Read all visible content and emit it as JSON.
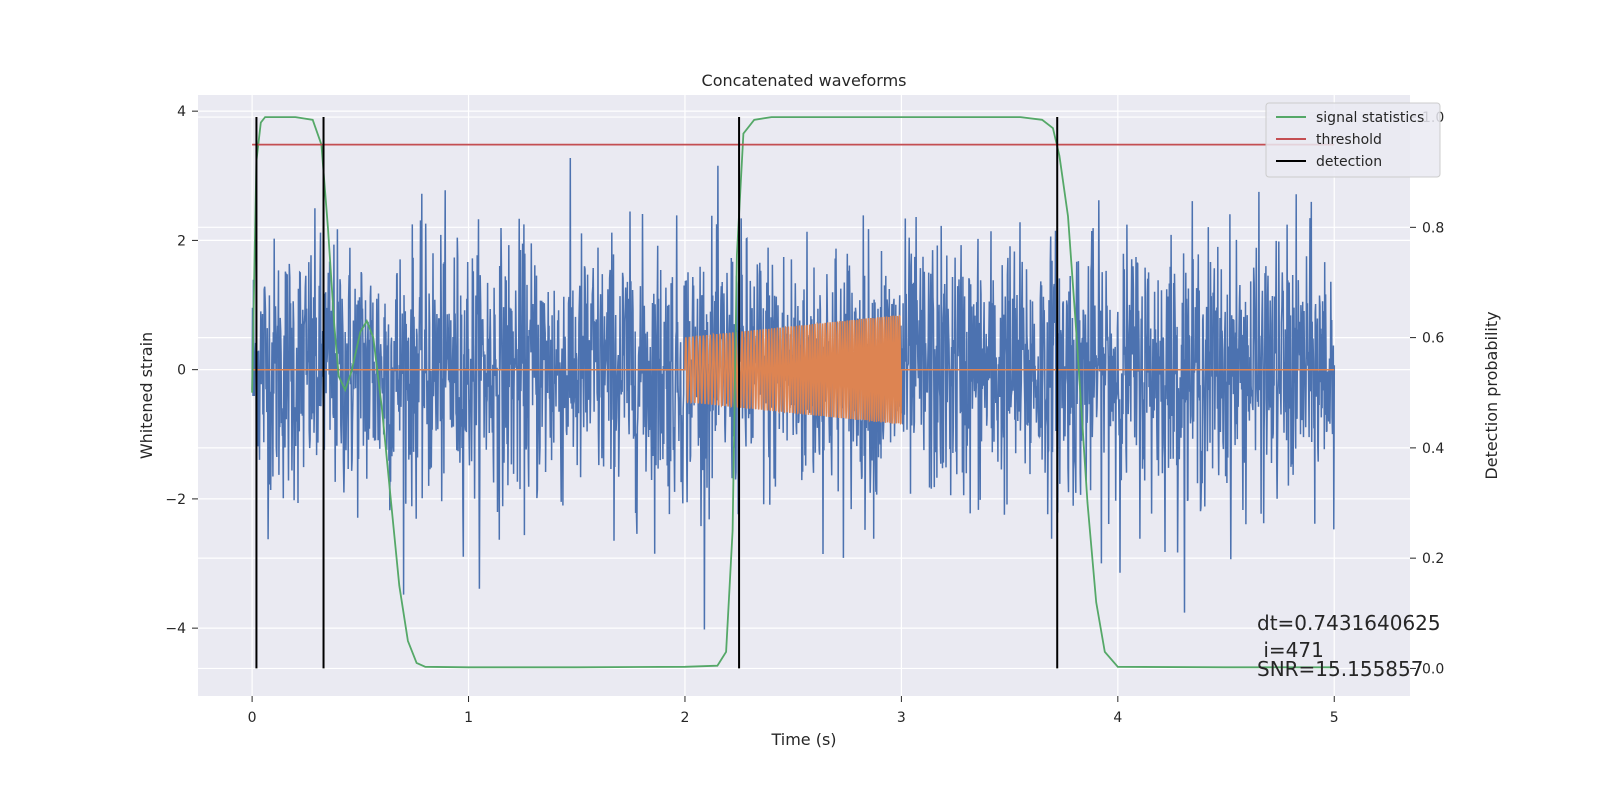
{
  "chart_data": {
    "type": "line",
    "title": "Concatenated waveforms",
    "xlabel": "Time (s)",
    "ylabel": "Whitened strain",
    "y2label": "Detection probability",
    "xlim": [
      -0.25,
      5.35
    ],
    "ylim": [
      -5.05,
      4.25
    ],
    "y2lim": [
      -0.05,
      1.04
    ],
    "x_ticks": [
      0,
      1,
      2,
      3,
      4,
      5
    ],
    "y_ticks": [
      -4,
      -2,
      0,
      2,
      4
    ],
    "y2_ticks": [
      0.0,
      0.2,
      0.4,
      0.6,
      0.8,
      1.0
    ],
    "x_tick_labels": [
      "0",
      "1",
      "2",
      "3",
      "4",
      "5"
    ],
    "y_tick_labels": [
      "−4",
      "−2",
      "0",
      "2",
      "4"
    ],
    "y2_tick_labels": [
      "0.0",
      "0.2",
      "0.4",
      "0.6",
      "0.8",
      "1.0"
    ],
    "grid": true,
    "legend_position": "top-right",
    "noise": {
      "x_range": [
        0,
        5
      ],
      "typical_amplitude": 1.0,
      "max": 3.85,
      "min": -4.7,
      "color": "#4c72b0"
    },
    "injected_signal": {
      "x_range": [
        2,
        3
      ],
      "start_amplitude": 0.5,
      "end_amplitude": 0.85,
      "color": "#dd8452"
    },
    "series": [
      {
        "name": "signal statistics",
        "axis": "right",
        "color": "#55a868",
        "x": [
          0,
          0.02,
          0.04,
          0.06,
          0.1,
          0.2,
          0.28,
          0.32,
          0.35,
          0.38,
          0.4,
          0.43,
          0.46,
          0.5,
          0.53,
          0.56,
          0.6,
          0.64,
          0.68,
          0.72,
          0.76,
          0.8,
          1.0,
          1.5,
          2.0,
          2.15,
          2.19,
          2.22,
          2.24,
          2.27,
          2.32,
          2.4,
          3.0,
          3.55,
          3.65,
          3.7,
          3.73,
          3.77,
          3.81,
          3.86,
          3.9,
          3.94,
          4.0,
          4.5,
          5.0
        ],
        "values": [
          0.5,
          0.92,
          0.99,
          1.0,
          1.0,
          1.0,
          0.995,
          0.95,
          0.8,
          0.62,
          0.53,
          0.505,
          0.54,
          0.61,
          0.63,
          0.6,
          0.47,
          0.31,
          0.15,
          0.05,
          0.01,
          0.003,
          0.002,
          0.002,
          0.003,
          0.005,
          0.03,
          0.25,
          0.75,
          0.97,
          0.995,
          1.0,
          1.0,
          1.0,
          0.995,
          0.98,
          0.93,
          0.82,
          0.6,
          0.3,
          0.12,
          0.03,
          0.003,
          0.002,
          0.002
        ]
      },
      {
        "name": "threshold",
        "axis": "right",
        "color": "#c44e52",
        "x": [
          0,
          5
        ],
        "values": [
          0.95,
          0.95
        ]
      },
      {
        "name": "detection",
        "axis": "right",
        "color": "#000000",
        "vertical_lines": [
          0.02,
          0.33,
          2.25,
          3.72
        ]
      }
    ],
    "annotations": [
      "dt=0.7431640625",
      " i=471",
      "SNR=15.155857"
    ]
  }
}
